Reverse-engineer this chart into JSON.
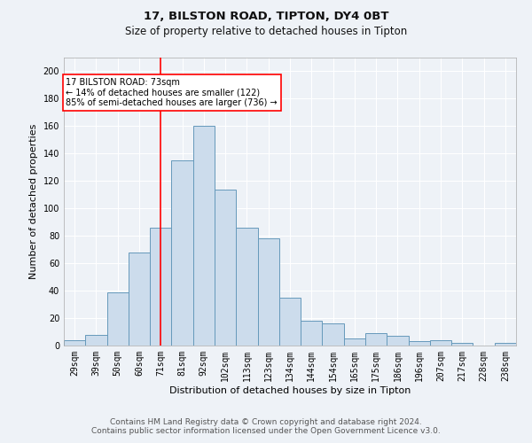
{
  "title1": "17, BILSTON ROAD, TIPTON, DY4 0BT",
  "title2": "Size of property relative to detached houses in Tipton",
  "xlabel": "Distribution of detached houses by size in Tipton",
  "ylabel": "Number of detached properties",
  "categories": [
    "29sqm",
    "39sqm",
    "50sqm",
    "60sqm",
    "71sqm",
    "81sqm",
    "92sqm",
    "102sqm",
    "113sqm",
    "123sqm",
    "134sqm",
    "144sqm",
    "154sqm",
    "165sqm",
    "175sqm",
    "186sqm",
    "196sqm",
    "207sqm",
    "217sqm",
    "228sqm",
    "238sqm"
  ],
  "values": [
    4,
    8,
    39,
    68,
    86,
    135,
    160,
    114,
    86,
    78,
    35,
    18,
    16,
    5,
    9,
    7,
    3,
    4,
    2,
    0,
    2
  ],
  "bar_color": "#ccdcec",
  "bar_edge_color": "#6699bb",
  "red_line_x": 4.5,
  "annotation_text_line1": "17 BILSTON ROAD: 73sqm",
  "annotation_text_line2": "← 14% of detached houses are smaller (122)",
  "annotation_text_line3": "85% of semi-detached houses are larger (736) →",
  "annotation_box_color": "white",
  "annotation_box_edge_color": "red",
  "ylim": [
    0,
    210
  ],
  "yticks": [
    0,
    20,
    40,
    60,
    80,
    100,
    120,
    140,
    160,
    180,
    200
  ],
  "footer1": "Contains HM Land Registry data © Crown copyright and database right 2024.",
  "footer2": "Contains public sector information licensed under the Open Government Licence v3.0.",
  "bg_color": "#eef2f7",
  "grid_color": "white",
  "title1_fontsize": 9.5,
  "title2_fontsize": 8.5,
  "xlabel_fontsize": 8,
  "ylabel_fontsize": 8,
  "tick_fontsize": 7,
  "annot_fontsize": 7,
  "footer_fontsize": 6.5
}
